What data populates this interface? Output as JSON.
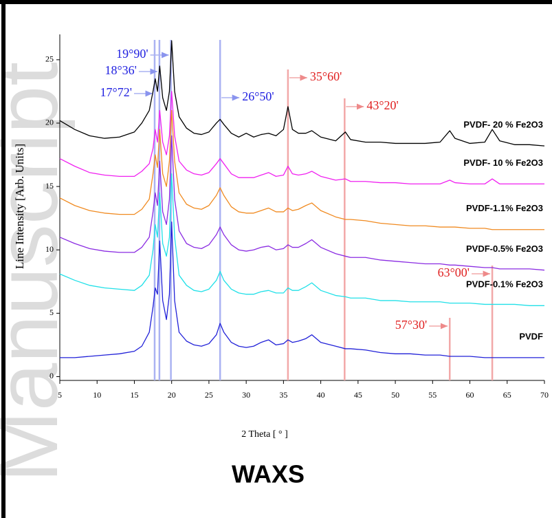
{
  "chart_data": {
    "type": "line",
    "title": "WAXS",
    "xlabel": "2 Theta [ ° ]",
    "ylabel": "Line Intensity [Arb. Units]",
    "watermark": "Manuscript",
    "xlim": [
      5,
      70
    ],
    "ylim": [
      -0.3,
      27
    ],
    "xticks": [
      5,
      10,
      15,
      20,
      25,
      30,
      35,
      40,
      45,
      50,
      55,
      60,
      65,
      70
    ],
    "yticks": [
      0,
      5,
      10,
      15,
      20,
      25
    ],
    "x": [
      5,
      7,
      9,
      11,
      13,
      15,
      16,
      17,
      17.5,
      17.8,
      18.1,
      18.4,
      18.8,
      19.3,
      19.7,
      20,
      20.4,
      21,
      22,
      23,
      24,
      25,
      26,
      26.5,
      27,
      28,
      29,
      30,
      31,
      32,
      33,
      34,
      35,
      35.6,
      36.2,
      37,
      38,
      38.8,
      40,
      42,
      43.3,
      44,
      46,
      48,
      50,
      52,
      54,
      56,
      57.3,
      58,
      60,
      62,
      63,
      64,
      66,
      68,
      70
    ],
    "series": [
      {
        "name": "PVDF- 20 % Fe2O3",
        "color": "#000000",
        "values": [
          20.2,
          19.5,
          19.0,
          18.8,
          18.9,
          19.3,
          20.0,
          21,
          22.5,
          23.5,
          22.5,
          24.5,
          22,
          21,
          22.5,
          26.5,
          22.5,
          20.5,
          19.6,
          19.2,
          19.1,
          19.3,
          20.0,
          20.3,
          19.9,
          19.2,
          18.9,
          19.2,
          18.9,
          19.1,
          19.2,
          19.0,
          19.5,
          21.3,
          19.5,
          19.2,
          19.2,
          19.4,
          18.9,
          18.6,
          19.3,
          18.7,
          18.5,
          18.5,
          18.4,
          18.4,
          18.4,
          18.5,
          19.4,
          18.8,
          18.4,
          18.5,
          19.5,
          18.6,
          18.3,
          18.3,
          18.2
        ]
      },
      {
        "name": "PVDF- 10 % Fe2O3",
        "color": "#f020f0",
        "values": [
          17.2,
          16.6,
          16.1,
          15.9,
          15.8,
          15.8,
          16.2,
          16.8,
          18,
          19.5,
          18.5,
          21,
          18.5,
          17.5,
          19,
          22.5,
          19,
          17,
          16.3,
          16.0,
          15.9,
          16.1,
          16.8,
          17.2,
          16.8,
          16.0,
          15.7,
          15.7,
          15.7,
          15.9,
          16.1,
          15.8,
          15.9,
          16.6,
          16.0,
          15.9,
          16.0,
          16.2,
          15.8,
          15.5,
          15.6,
          15.4,
          15.4,
          15.3,
          15.3,
          15.2,
          15.2,
          15.2,
          15.5,
          15.3,
          15.2,
          15.2,
          15.6,
          15.2,
          15.2,
          15.2,
          15.2
        ]
      },
      {
        "name": "PVDF-1.1% Fe2O3",
        "color": "#f08a20",
        "values": [
          14.1,
          13.5,
          13.1,
          12.9,
          12.8,
          12.8,
          13.2,
          14,
          16,
          17.5,
          16.5,
          19.5,
          16,
          15,
          17,
          21,
          17,
          14.5,
          13.6,
          13.3,
          13.2,
          13.5,
          14.3,
          14.9,
          14.3,
          13.4,
          13.0,
          12.9,
          12.9,
          13.1,
          13.3,
          13.0,
          13.0,
          13.3,
          13.1,
          13.2,
          13.5,
          13.7,
          13.1,
          12.6,
          12.4,
          12.4,
          12.3,
          12.1,
          12.0,
          11.9,
          11.9,
          11.8,
          11.8,
          11.8,
          11.7,
          11.7,
          11.6,
          11.6,
          11.6,
          11.6,
          11.6
        ]
      },
      {
        "name": "PVDF-0.5% Fe2O3",
        "color": "#8a2be2",
        "values": [
          11.0,
          10.5,
          10.1,
          9.9,
          9.8,
          9.8,
          10.2,
          11,
          13,
          14.5,
          13.5,
          17,
          13,
          12,
          14,
          19,
          14,
          11.5,
          10.5,
          10.2,
          10.1,
          10.4,
          11.2,
          11.8,
          11.2,
          10.4,
          10.0,
          9.9,
          10,
          10.2,
          10.3,
          10,
          10.1,
          10.4,
          10.2,
          10.2,
          10.5,
          10.8,
          10.2,
          9.7,
          9.5,
          9.4,
          9.4,
          9.2,
          9.1,
          9.0,
          8.9,
          8.9,
          8.8,
          8.8,
          8.7,
          8.6,
          8.6,
          8.5,
          8.5,
          8.5,
          8.4
        ]
      },
      {
        "name": "PVDF-0.1% Fe2O3",
        "color": "#20e0e8",
        "values": [
          8.1,
          7.6,
          7.2,
          7.0,
          6.9,
          6.8,
          7.2,
          8,
          10,
          12,
          11,
          14.5,
          10.5,
          9.5,
          11,
          16,
          11,
          8,
          7.2,
          6.8,
          6.7,
          6.9,
          7.6,
          8.3,
          7.6,
          6.9,
          6.6,
          6.5,
          6.5,
          6.7,
          6.8,
          6.6,
          6.6,
          7.0,
          6.8,
          6.8,
          7.1,
          7.4,
          6.8,
          6.4,
          6.3,
          6.2,
          6.2,
          6.0,
          6.0,
          5.9,
          5.9,
          5.9,
          5.8,
          5.8,
          5.8,
          5.7,
          5.7,
          5.7,
          5.7,
          5.6,
          5.6
        ]
      },
      {
        "name": "PVDF",
        "color": "#2020d8",
        "values": [
          1.5,
          1.5,
          1.6,
          1.7,
          1.8,
          2.0,
          2.4,
          3.5,
          5.5,
          7,
          6.5,
          10.7,
          6,
          4.5,
          6.5,
          12.2,
          6,
          3.5,
          2.8,
          2.5,
          2.4,
          2.6,
          3.3,
          4.2,
          3.5,
          2.7,
          2.4,
          2.3,
          2.4,
          2.7,
          2.9,
          2.5,
          2.6,
          2.9,
          2.7,
          2.8,
          3.0,
          3.3,
          2.7,
          2.4,
          2.2,
          2.2,
          2.1,
          1.9,
          1.8,
          1.8,
          1.7,
          1.7,
          1.6,
          1.6,
          1.6,
          1.5,
          1.5,
          1.5,
          1.5,
          1.5,
          1.5
        ]
      }
    ],
    "annotations": [
      {
        "text": "17°72'",
        "x": 17.72,
        "color": "#2020e0",
        "line_color": "#aab2f2"
      },
      {
        "text": "18°36'",
        "x": 18.36,
        "color": "#2020e0",
        "line_color": "#aab2f2"
      },
      {
        "text": "19°90'",
        "x": 19.9,
        "color": "#2020e0",
        "line_color": "#aab2f2"
      },
      {
        "text": "26°50'",
        "x": 26.5,
        "color": "#2020e0",
        "line_color": "#aab2f2"
      },
      {
        "text": "35°60'",
        "x": 35.6,
        "color": "#e02020",
        "line_color": "#f2a8a8"
      },
      {
        "text": "43°20'",
        "x": 43.2,
        "color": "#e02020",
        "line_color": "#f2a8a8"
      },
      {
        "text": "57°30'",
        "x": 57.3,
        "color": "#e02020",
        "line_color": "#f2a8a8"
      },
      {
        "text": "63°00'",
        "x": 63.0,
        "color": "#e02020",
        "line_color": "#f2a8a8"
      }
    ]
  }
}
